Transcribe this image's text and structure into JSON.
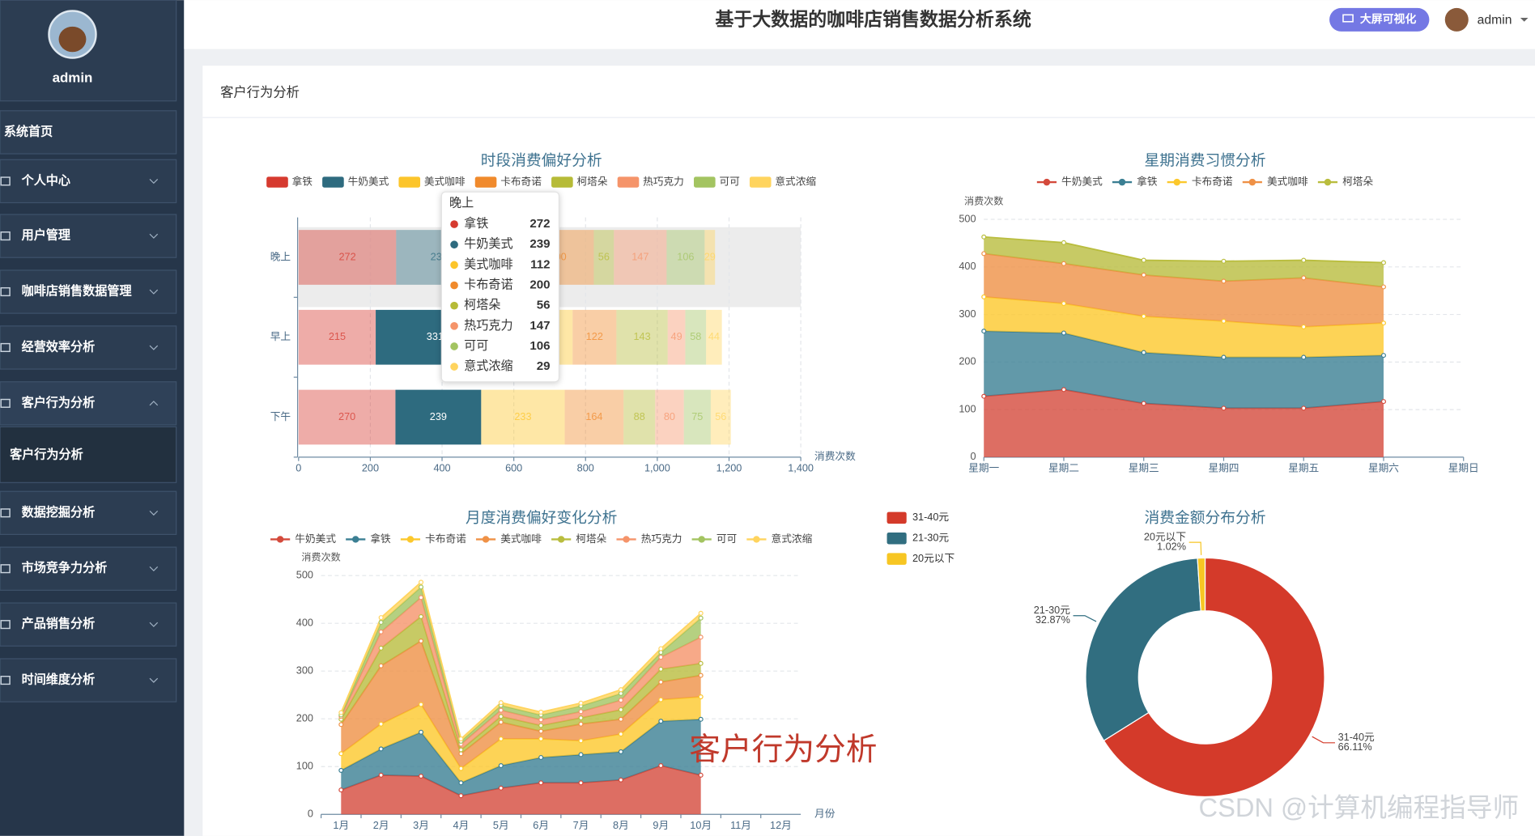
{
  "sidebar": {
    "user": "admin",
    "menu": [
      "系统首页",
      "个人中心",
      "用户管理",
      "咖啡店销售数据管理",
      "经营效率分析",
      "客户行为分析",
      "数据挖掘分析",
      "市场竞争力分析",
      "产品销售分析",
      "时间维度分析"
    ],
    "submenu": "客户行为分析"
  },
  "header": {
    "title": "基于大数据的咖啡店销售数据分析系统",
    "button": "大屏可视化",
    "user": "admin"
  },
  "card_title": "客户行为分析",
  "watermarks": [
    "客户行为分析",
    "CSDN @计算机编程指导师"
  ],
  "chart_data": [
    {
      "type": "bar",
      "orientation": "horizontal",
      "stacked": true,
      "title": "时段消费偏好分析",
      "x_label": "消费次数",
      "categories": [
        "下午",
        "早上",
        "晚上"
      ],
      "series": [
        {
          "name": "拿铁",
          "color": "#d63a2f",
          "values": [
            270,
            215,
            272
          ]
        },
        {
          "name": "牛奶美式",
          "color": "#2e6b7f",
          "values": [
            239,
            331,
            239
          ]
        },
        {
          "name": "美式咖啡",
          "color": "#fcc52b",
          "values": [
            233,
            218,
            112
          ]
        },
        {
          "name": "卡布奇诺",
          "color": "#f08a2c",
          "values": [
            164,
            122,
            200
          ]
        },
        {
          "name": "柯塔朵",
          "color": "#b6bb37",
          "values": [
            88,
            143,
            56
          ]
        },
        {
          "name": "热巧克力",
          "color": "#f5946a",
          "values": [
            80,
            49,
            147
          ]
        },
        {
          "name": "可可",
          "color": "#a3c461",
          "values": [
            75,
            58,
            106
          ]
        },
        {
          "name": "意式浓缩",
          "color": "#ffd45e",
          "values": [
            56,
            44,
            29
          ]
        }
      ],
      "xlim": [
        0,
        1400
      ],
      "xticks": [
        0,
        200,
        400,
        600,
        800,
        {
          "value": 1000,
          "label": "1,000"
        },
        {
          "value": 1200,
          "label": "1,200"
        },
        {
          "value": 1400,
          "label": "1,400"
        }
      ],
      "grid": true
    },
    {
      "type": "area",
      "stacked": true,
      "title": "星期消费习惯分析",
      "y_label": "消费次数",
      "categories": [
        "星期一",
        "星期二",
        "星期三",
        "星期四",
        "星期五",
        "星期六",
        "星期日"
      ],
      "series": [
        {
          "name": "牛奶美式",
          "color": "#d44a3c",
          "values": [
            128,
            142,
            113,
            103,
            103,
            117,
            null
          ]
        },
        {
          "name": "拿铁",
          "color": "#3b7f93",
          "values": [
            137,
            119,
            107,
            107,
            107,
            97,
            null
          ]
        },
        {
          "name": "卡布奇诺",
          "color": "#fcc82c",
          "values": [
            72,
            62,
            76,
            76,
            64,
            68,
            null
          ]
        },
        {
          "name": "美式咖啡",
          "color": "#ef9146",
          "values": [
            91,
            84,
            87,
            84,
            103,
            76,
            null
          ]
        },
        {
          "name": "柯塔朵",
          "color": "#b9bd3e",
          "values": [
            35,
            44,
            31,
            42,
            37,
            51,
            null
          ]
        }
      ],
      "ylim": [
        0,
        500
      ],
      "yticks": [
        0,
        100,
        200,
        300,
        400,
        500
      ],
      "grid": true
    },
    {
      "type": "area",
      "stacked": true,
      "title": "月度消费偏好变化分析",
      "y_label": "消费次数",
      "x_label": "月份",
      "categories": [
        "1月",
        "2月",
        "3月",
        "4月",
        "5月",
        "6月",
        "7月",
        "8月",
        "9月",
        "10月",
        "11月",
        "12月"
      ],
      "series": [
        {
          "name": "牛奶美式",
          "color": "#d44a3c",
          "values": [
            51,
            82,
            80,
            39,
            55,
            66,
            66,
            72,
            102,
            82,
            null,
            null
          ]
        },
        {
          "name": "拿铁",
          "color": "#3b7f93",
          "values": [
            41,
            55,
            92,
            27,
            47,
            53,
            59,
            59,
            93,
            117,
            null,
            null
          ]
        },
        {
          "name": "卡布奇诺",
          "color": "#fcc82c",
          "values": [
            35,
            52,
            58,
            30,
            56,
            39,
            29,
            37,
            45,
            47,
            null,
            null
          ]
        },
        {
          "name": "美式咖啡",
          "color": "#ef9146",
          "values": [
            61,
            122,
            133,
            31,
            35,
            16,
            35,
            31,
            37,
            45,
            null,
            null
          ]
        },
        {
          "name": "柯塔朵",
          "color": "#b9bd3e",
          "values": [
            11,
            37,
            51,
            8,
            12,
            12,
            13,
            20,
            27,
            25,
            null,
            null
          ]
        },
        {
          "name": "热巧克力",
          "color": "#f5946a",
          "values": [
            6,
            34,
            40,
            12,
            13,
            12,
            13,
            20,
            25,
            55,
            null,
            null
          ]
        },
        {
          "name": "可可",
          "color": "#a3c461",
          "values": [
            3,
            20,
            22,
            6,
            10,
            10,
            12,
            14,
            10,
            40,
            null,
            null
          ]
        },
        {
          "name": "意式浓缩",
          "color": "#ffd45e",
          "values": [
            5,
            10,
            10,
            5,
            6,
            6,
            6,
            8,
            8,
            10,
            null,
            null
          ]
        }
      ],
      "ylim": [
        0,
        500
      ],
      "yticks": [
        0,
        100,
        200,
        300,
        400,
        500
      ],
      "grid": true
    },
    {
      "type": "pie",
      "donut": true,
      "title": "消费金额分布分析",
      "categories": [
        "31-40元",
        "21-30元",
        "20元以下"
      ],
      "values": [
        66.11,
        32.87,
        1.02
      ],
      "value_labels": [
        "66.11%",
        "32.87%",
        "1.02%"
      ],
      "colors": [
        "#d43a2a",
        "#316e80",
        "#f7c623"
      ]
    }
  ]
}
